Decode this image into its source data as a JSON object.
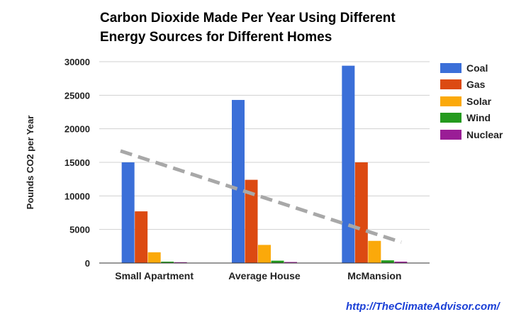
{
  "title": "Carbon Dioxide Made Per Year Using Different Energy Sources for Different Homes",
  "credit": "http://TheClimateAdvisor.com/",
  "chart_data": {
    "type": "bar",
    "title": "Carbon Dioxide Made Per Year Using Different Energy Sources for Different Homes",
    "xlabel": "",
    "ylabel": "Pounds CO2 per Year",
    "ylim": [
      0,
      30000
    ],
    "yticks": [
      "0",
      "5000",
      "10000",
      "15000",
      "20000",
      "25000",
      "30000"
    ],
    "grid": true,
    "legend_position": "right",
    "categories": [
      "Small Apartment",
      "Average House",
      "McMansion"
    ],
    "series": [
      {
        "name": "Coal",
        "color": "#3b6fd8",
        "values": [
          15000,
          24300,
          29400
        ]
      },
      {
        "name": "Gas",
        "color": "#dc4a12",
        "values": [
          7700,
          12400,
          15000
        ]
      },
      {
        "name": "Solar",
        "color": "#fba90a",
        "values": [
          1600,
          2700,
          3300
        ]
      },
      {
        "name": "Wind",
        "color": "#249a1e",
        "values": [
          200,
          350,
          400
        ]
      },
      {
        "name": "Nuclear",
        "color": "#9a1d96",
        "values": [
          120,
          150,
          200
        ]
      }
    ],
    "trendline": {
      "style": "dashed",
      "color": "#a8a8a8",
      "from": 16700,
      "to": 3100
    }
  }
}
